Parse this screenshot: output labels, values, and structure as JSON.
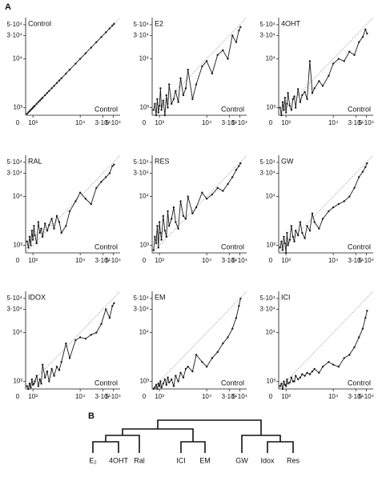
{
  "figure": {
    "panel_a": "A",
    "panel_b": "B"
  },
  "chart_data": [
    {
      "type": "line",
      "title": "Control",
      "xlabel": "Control",
      "log_scale": true,
      "reference_line": true,
      "color": "#1a1a1a",
      "xlim": [
        700,
        70000
      ],
      "ylim": [
        700,
        70000
      ],
      "origin_label": "0",
      "xticks": [
        {
          "value": 1000,
          "label": "10³"
        },
        {
          "value": 10000,
          "label": "10⁴"
        },
        {
          "value": 30000,
          "label": "3·10⁴"
        },
        {
          "value": 50000,
          "label": "5·10⁴"
        }
      ],
      "yticks": [
        {
          "value": 1000,
          "label": "10³"
        },
        {
          "value": 10000,
          "label": "10⁴"
        },
        {
          "value": 30000,
          "label": "3·10⁴"
        },
        {
          "value": 50000,
          "label": "5·10⁴"
        }
      ],
      "x": [
        750,
        800,
        850,
        900,
        950,
        1000,
        1050,
        1100,
        1200,
        1300,
        1400,
        1500,
        1600,
        1800,
        2000,
        2200,
        2500,
        2800,
        3200,
        3600,
        4000,
        5000,
        6000,
        8000,
        10000,
        13000,
        17000,
        22000,
        28000,
        35000,
        42000,
        48000,
        52000
      ],
      "values": [
        750,
        800,
        850,
        900,
        950,
        1000,
        1050,
        1100,
        1200,
        1300,
        1400,
        1500,
        1600,
        1800,
        2000,
        2200,
        2500,
        2800,
        3200,
        3600,
        4000,
        5000,
        6000,
        8000,
        10000,
        13000,
        17000,
        22000,
        28000,
        35000,
        42000,
        48000,
        52000
      ]
    },
    {
      "type": "line",
      "title": "E2",
      "xlabel": "Control",
      "log_scale": true,
      "reference_line": true,
      "color": "#1a1a1a",
      "xlim": [
        700,
        70000
      ],
      "ylim": [
        700,
        70000
      ],
      "origin_label": "0",
      "xticks": [
        {
          "value": 1000,
          "label": "10³"
        },
        {
          "value": 10000,
          "label": "10⁴"
        },
        {
          "value": 30000,
          "label": "3·10⁴"
        },
        {
          "value": 50000,
          "label": "5·10⁴"
        }
      ],
      "yticks": [
        {
          "value": 1000,
          "label": "10³"
        },
        {
          "value": 10000,
          "label": "10⁴"
        },
        {
          "value": 30000,
          "label": "3·10⁴"
        },
        {
          "value": 50000,
          "label": "5·10⁴"
        }
      ],
      "x": [
        750,
        800,
        850,
        900,
        950,
        1000,
        1050,
        1100,
        1200,
        1300,
        1400,
        1500,
        1600,
        1800,
        2000,
        2200,
        2500,
        2800,
        3200,
        3600,
        4000,
        5000,
        6000,
        8000,
        10000,
        13000,
        17000,
        22000,
        28000,
        35000,
        42000,
        48000,
        52000
      ],
      "values": [
        900,
        1200,
        700,
        1500,
        800,
        1100,
        2500,
        900,
        1400,
        700,
        1800,
        1000,
        3000,
        1200,
        1500,
        2200,
        1300,
        4000,
        1800,
        2500,
        6000,
        1500,
        3000,
        7000,
        9000,
        5000,
        12000,
        15000,
        10000,
        30000,
        22000,
        38000,
        45000
      ]
    },
    {
      "type": "line",
      "title": "4OHT",
      "xlabel": "Control",
      "log_scale": true,
      "reference_line": true,
      "color": "#1a1a1a",
      "xlim": [
        700,
        70000
      ],
      "ylim": [
        700,
        70000
      ],
      "origin_label": "0",
      "xticks": [
        {
          "value": 1000,
          "label": "10³"
        },
        {
          "value": 10000,
          "label": "10⁴"
        },
        {
          "value": 30000,
          "label": "3·10⁴"
        },
        {
          "value": 50000,
          "label": "5·10⁴"
        }
      ],
      "yticks": [
        {
          "value": 1000,
          "label": "10³"
        },
        {
          "value": 10000,
          "label": "10⁴"
        },
        {
          "value": 30000,
          "label": "3·10⁴"
        },
        {
          "value": 50000,
          "label": "5·10⁴"
        }
      ],
      "x": [
        750,
        800,
        850,
        900,
        950,
        1000,
        1050,
        1100,
        1200,
        1300,
        1400,
        1500,
        1600,
        1800,
        2000,
        2200,
        2500,
        2800,
        3200,
        3600,
        4000,
        5000,
        6000,
        8000,
        10000,
        13000,
        17000,
        22000,
        28000,
        35000,
        42000,
        48000,
        52000
      ],
      "values": [
        1000,
        700,
        1300,
        900,
        1600,
        800,
        1200,
        2000,
        1100,
        900,
        1500,
        1700,
        1000,
        2400,
        1300,
        1800,
        2100,
        1500,
        9000,
        2000,
        2500,
        3500,
        2800,
        4500,
        8000,
        10000,
        9000,
        14000,
        12000,
        22000,
        28000,
        40000,
        33000
      ]
    },
    {
      "type": "line",
      "title": "RAL",
      "xlabel": "Control",
      "log_scale": true,
      "reference_line": true,
      "color": "#1a1a1a",
      "xlim": [
        700,
        70000
      ],
      "ylim": [
        700,
        70000
      ],
      "origin_label": "0",
      "xticks": [
        {
          "value": 1000,
          "label": "10³"
        },
        {
          "value": 10000,
          "label": "10⁴"
        },
        {
          "value": 30000,
          "label": "3·10⁴"
        },
        {
          "value": 50000,
          "label": "5·10⁴"
        }
      ],
      "yticks": [
        {
          "value": 1000,
          "label": "10³"
        },
        {
          "value": 10000,
          "label": "10⁴"
        },
        {
          "value": 30000,
          "label": "3·10⁴"
        },
        {
          "value": 50000,
          "label": "5·10⁴"
        }
      ],
      "x": [
        750,
        800,
        850,
        900,
        950,
        1000,
        1050,
        1100,
        1200,
        1300,
        1400,
        1500,
        1600,
        1800,
        2000,
        2200,
        2500,
        2800,
        3200,
        3600,
        4000,
        5000,
        6000,
        8000,
        10000,
        13000,
        17000,
        22000,
        28000,
        35000,
        42000,
        48000,
        52000
      ],
      "values": [
        1200,
        900,
        1500,
        1000,
        2000,
        1300,
        2500,
        1600,
        1100,
        3000,
        1800,
        2200,
        1500,
        2800,
        2000,
        2600,
        3500,
        2200,
        4000,
        3000,
        1800,
        2500,
        5000,
        8000,
        12000,
        9000,
        7000,
        15000,
        20000,
        25000,
        30000,
        42000,
        45000
      ]
    },
    {
      "type": "line",
      "title": "RES",
      "xlabel": "Control",
      "log_scale": true,
      "reference_line": true,
      "color": "#1a1a1a",
      "xlim": [
        700,
        70000
      ],
      "ylim": [
        700,
        70000
      ],
      "origin_label": "0",
      "xticks": [
        {
          "value": 1000,
          "label": "10³"
        },
        {
          "value": 10000,
          "label": "10⁴"
        },
        {
          "value": 30000,
          "label": "3·10⁴"
        },
        {
          "value": 50000,
          "label": "5·10⁴"
        }
      ],
      "yticks": [
        {
          "value": 1000,
          "label": "10³"
        },
        {
          "value": 10000,
          "label": "10⁴"
        },
        {
          "value": 30000,
          "label": "3·10⁴"
        },
        {
          "value": 50000,
          "label": "5·10⁴"
        }
      ],
      "x": [
        750,
        800,
        850,
        900,
        950,
        1000,
        1050,
        1100,
        1200,
        1300,
        1400,
        1500,
        1600,
        1800,
        2000,
        2200,
        2500,
        2800,
        3200,
        3600,
        4000,
        5000,
        6000,
        8000,
        10000,
        13000,
        17000,
        22000,
        28000,
        35000,
        42000,
        48000,
        52000
      ],
      "values": [
        800,
        1500,
        1100,
        2500,
        900,
        3000,
        1800,
        1300,
        4000,
        2000,
        1500,
        5000,
        2500,
        3500,
        6000,
        3000,
        2200,
        8000,
        4000,
        3500,
        10000,
        4500,
        6000,
        12000,
        9000,
        11000,
        15000,
        13000,
        18000,
        25000,
        35000,
        42000,
        48000
      ]
    },
    {
      "type": "line",
      "title": "GW",
      "xlabel": "Control",
      "log_scale": true,
      "reference_line": true,
      "color": "#1a1a1a",
      "xlim": [
        700,
        70000
      ],
      "ylim": [
        700,
        70000
      ],
      "origin_label": "0",
      "xticks": [
        {
          "value": 1000,
          "label": "10³"
        },
        {
          "value": 10000,
          "label": "10⁴"
        },
        {
          "value": 30000,
          "label": "3·10⁴"
        },
        {
          "value": 50000,
          "label": "5·10⁴"
        }
      ],
      "yticks": [
        {
          "value": 1000,
          "label": "10³"
        },
        {
          "value": 10000,
          "label": "10⁴"
        },
        {
          "value": 30000,
          "label": "3·10⁴"
        },
        {
          "value": 50000,
          "label": "5·10⁴"
        }
      ],
      "x": [
        750,
        800,
        850,
        900,
        950,
        1000,
        1050,
        1100,
        1200,
        1300,
        1400,
        1500,
        1600,
        1800,
        2000,
        2200,
        2500,
        2800,
        3200,
        3600,
        4000,
        5000,
        6000,
        8000,
        10000,
        13000,
        17000,
        22000,
        28000,
        35000,
        42000,
        48000,
        52000
      ],
      "values": [
        900,
        1200,
        800,
        1500,
        1100,
        700,
        1800,
        1000,
        1300,
        2500,
        1500,
        1200,
        2000,
        1600,
        3000,
        1800,
        1400,
        2500,
        2000,
        4500,
        3000,
        2200,
        3500,
        5000,
        6000,
        7000,
        8000,
        10000,
        15000,
        25000,
        32000,
        40000,
        48000
      ]
    },
    {
      "type": "line",
      "title": "IDOX",
      "xlabel": "Control",
      "log_scale": true,
      "reference_line": true,
      "color": "#1a1a1a",
      "xlim": [
        700,
        70000
      ],
      "ylim": [
        700,
        70000
      ],
      "origin_label": "0",
      "xticks": [
        {
          "value": 1000,
          "label": "10³"
        },
        {
          "value": 10000,
          "label": "10⁴"
        },
        {
          "value": 30000,
          "label": "3·10⁴"
        },
        {
          "value": 50000,
          "label": "5·10⁴"
        }
      ],
      "yticks": [
        {
          "value": 1000,
          "label": "10³"
        },
        {
          "value": 10000,
          "label": "10⁴"
        },
        {
          "value": 30000,
          "label": "3·10⁴"
        },
        {
          "value": 50000,
          "label": "5·10⁴"
        }
      ],
      "x": [
        750,
        800,
        850,
        900,
        950,
        1000,
        1050,
        1100,
        1200,
        1300,
        1400,
        1500,
        1600,
        1800,
        2000,
        2200,
        2500,
        2800,
        3200,
        3600,
        4000,
        5000,
        6000,
        8000,
        10000,
        13000,
        17000,
        22000,
        28000,
        35000,
        42000,
        48000,
        52000
      ],
      "values": [
        800,
        700,
        900,
        750,
        1100,
        850,
        900,
        1000,
        1300,
        800,
        1100,
        900,
        2200,
        1200,
        1600,
        1000,
        1800,
        1300,
        2000,
        1700,
        2500,
        6000,
        3000,
        7000,
        8000,
        7500,
        9000,
        10000,
        15000,
        30000,
        20000,
        35000,
        40000
      ]
    },
    {
      "type": "line",
      "title": "EM",
      "xlabel": "Control",
      "log_scale": true,
      "reference_line": true,
      "color": "#1a1a1a",
      "xlim": [
        700,
        70000
      ],
      "ylim": [
        700,
        70000
      ],
      "origin_label": "0",
      "xticks": [
        {
          "value": 1000,
          "label": "10³"
        },
        {
          "value": 10000,
          "label": "10⁴"
        },
        {
          "value": 30000,
          "label": "3·10⁴"
        },
        {
          "value": 50000,
          "label": "5·10⁴"
        }
      ],
      "yticks": [
        {
          "value": 1000,
          "label": "10³"
        },
        {
          "value": 10000,
          "label": "10⁴"
        },
        {
          "value": 30000,
          "label": "3·10⁴"
        },
        {
          "value": 50000,
          "label": "5·10⁴"
        }
      ],
      "x": [
        750,
        800,
        850,
        900,
        950,
        1000,
        1050,
        1100,
        1200,
        1300,
        1400,
        1500,
        1600,
        1800,
        2000,
        2200,
        2500,
        2800,
        3200,
        3600,
        4000,
        5000,
        6000,
        8000,
        10000,
        13000,
        17000,
        22000,
        28000,
        35000,
        42000,
        48000,
        52000
      ],
      "values": [
        700,
        750,
        850,
        700,
        900,
        800,
        1000,
        750,
        900,
        1100,
        850,
        1200,
        950,
        1100,
        800,
        1300,
        1000,
        1500,
        1200,
        1800,
        2000,
        1600,
        3500,
        2500,
        2000,
        3000,
        4000,
        6000,
        8000,
        12000,
        20000,
        35000,
        50000
      ]
    },
    {
      "type": "line",
      "title": "ICI",
      "xlabel": "Control",
      "log_scale": true,
      "reference_line": true,
      "color": "#1a1a1a",
      "xlim": [
        700,
        70000
      ],
      "ylim": [
        700,
        70000
      ],
      "origin_label": "0",
      "xticks": [
        {
          "value": 1000,
          "label": "10³"
        },
        {
          "value": 10000,
          "label": "10⁴"
        },
        {
          "value": 30000,
          "label": "3·10⁴"
        },
        {
          "value": 50000,
          "label": "5·10⁴"
        }
      ],
      "yticks": [
        {
          "value": 1000,
          "label": "10³"
        },
        {
          "value": 10000,
          "label": "10⁴"
        },
        {
          "value": 30000,
          "label": "3·10⁴"
        },
        {
          "value": 50000,
          "label": "5·10⁴"
        }
      ],
      "x": [
        750,
        800,
        850,
        900,
        950,
        1000,
        1050,
        1100,
        1200,
        1300,
        1400,
        1500,
        1600,
        1800,
        2000,
        2200,
        2500,
        2800,
        3200,
        3600,
        4000,
        5000,
        6000,
        8000,
        10000,
        13000,
        17000,
        22000,
        28000,
        35000,
        42000,
        48000,
        52000
      ],
      "values": [
        800,
        900,
        700,
        1000,
        850,
        800,
        1100,
        900,
        950,
        1200,
        1000,
        1000,
        1300,
        1100,
        1200,
        1400,
        1300,
        1500,
        1400,
        1600,
        1800,
        1500,
        2000,
        2500,
        2200,
        2000,
        3000,
        3500,
        5000,
        8000,
        12000,
        20000,
        28000
      ]
    }
  ],
  "dendrogram": {
    "leaves": [
      "E₂",
      "4OHT",
      "Ral",
      "ICI",
      "EM",
      "GW",
      "Idox",
      "Res"
    ]
  }
}
